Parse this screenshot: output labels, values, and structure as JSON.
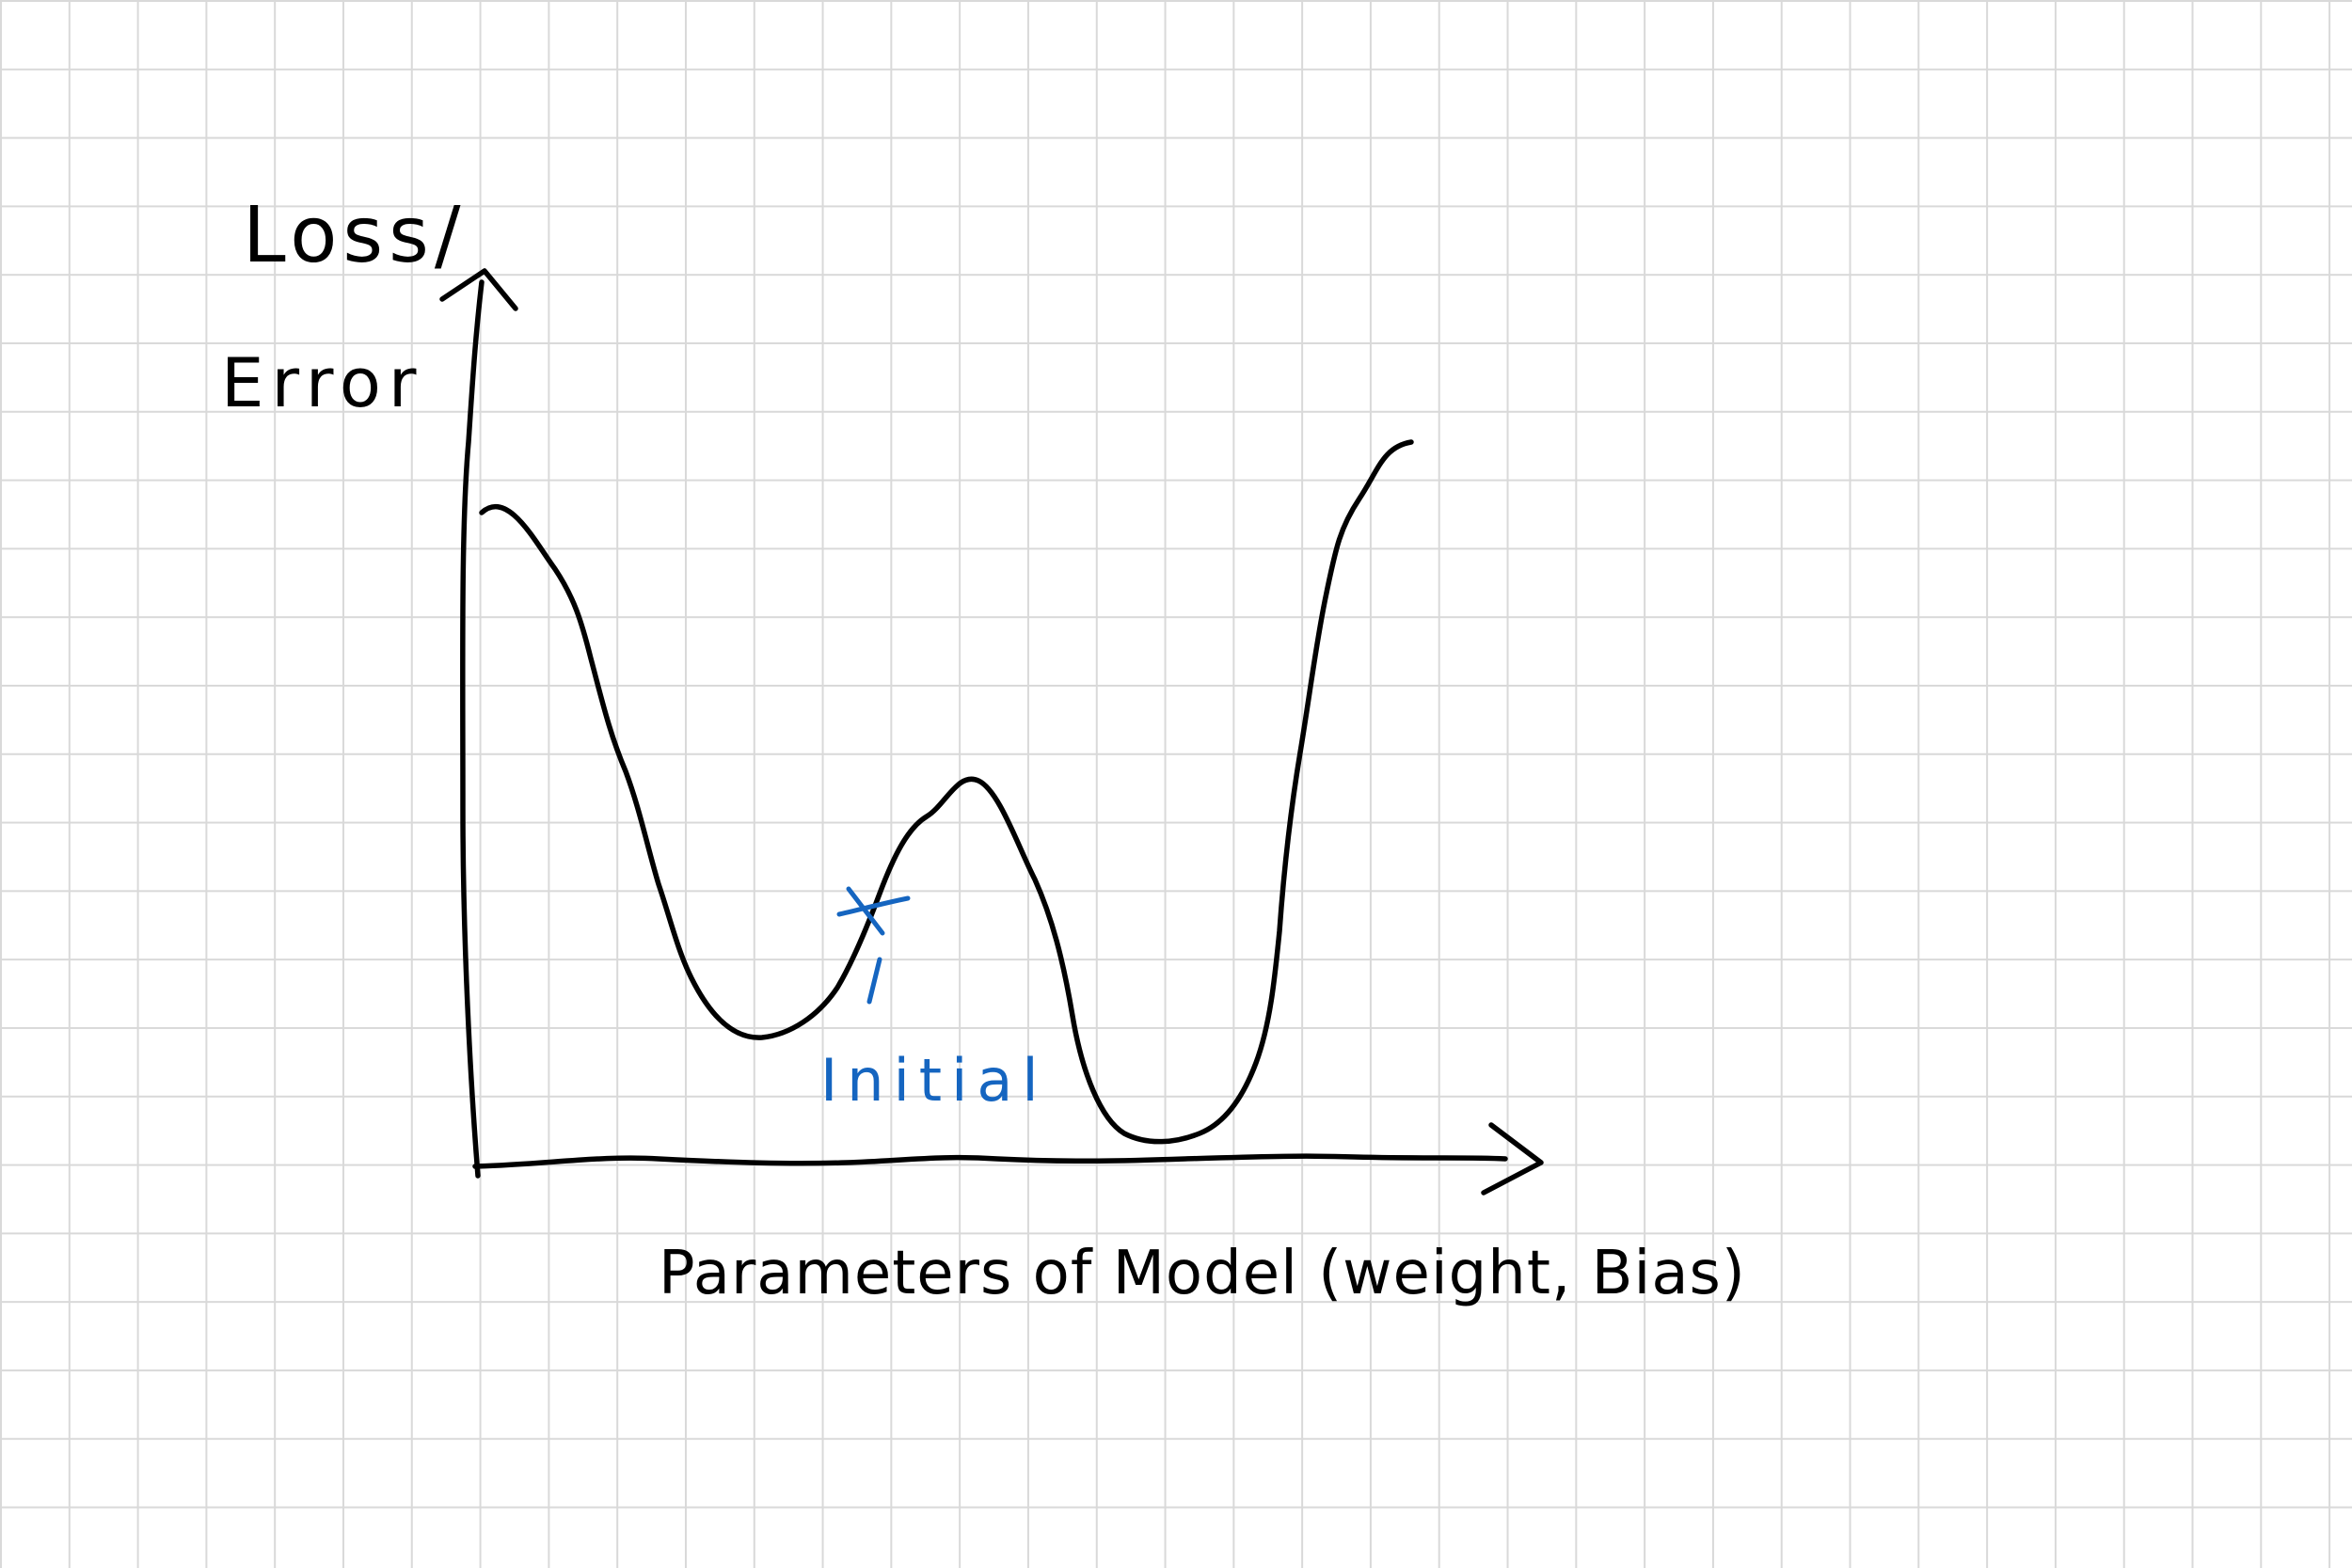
{
  "diagram": {
    "y_axis_label_line1": "Loss/",
    "y_axis_label_line2": "Error",
    "x_axis_label": "Parameters of Model (weight, Bias)",
    "marker_label": "Initial",
    "colors": {
      "ink": "#000000",
      "marker": "#1565c0",
      "grid": "#d9d9d9",
      "paper": "#ffffff"
    }
  }
}
